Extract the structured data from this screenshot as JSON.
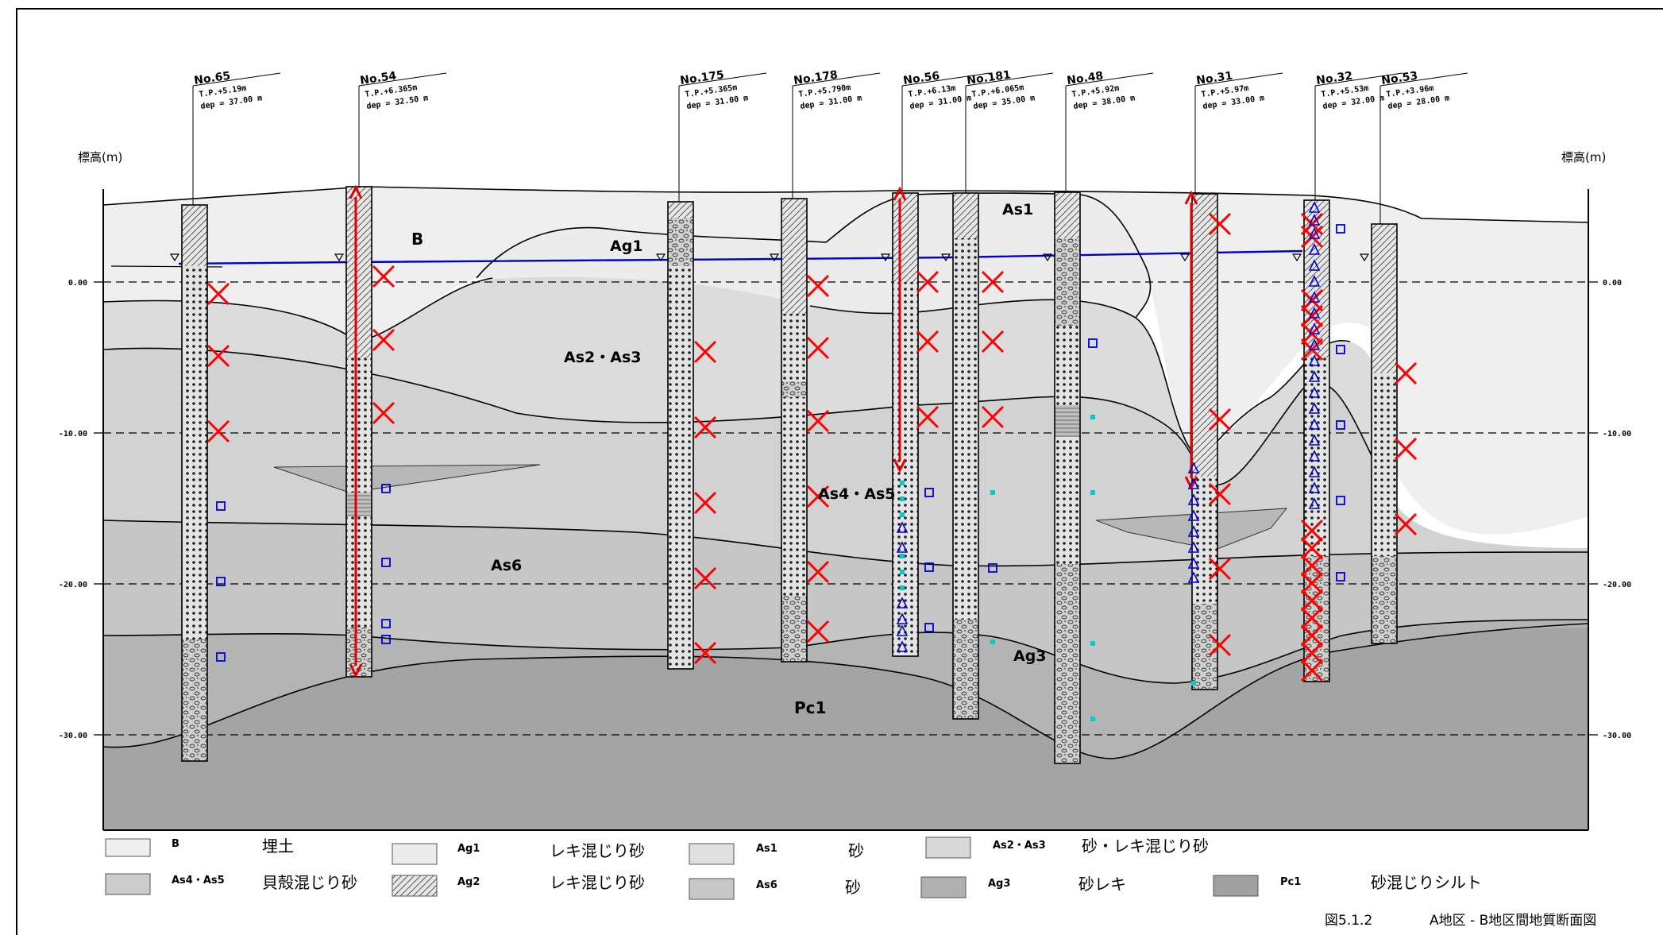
{
  "axis": {
    "left_label": "標高(m)",
    "right_label": "標高(m)",
    "ticks": [
      "0.00",
      "-10.00",
      "-20.00",
      "-30.00"
    ]
  },
  "boreholes": [
    {
      "id": "No.65",
      "tp": "T.P.+5.19m",
      "dep": "dep = 37.00 m"
    },
    {
      "id": "No.54",
      "tp": "T.P.+6.365m",
      "dep": "dep = 32.50 m"
    },
    {
      "id": "No.175",
      "tp": "T.P.+5.365m",
      "dep": "dep = 31.00 m"
    },
    {
      "id": "No.178",
      "tp": "T.P.+5.790m",
      "dep": "dep = 31.00 m"
    },
    {
      "id": "No.56",
      "tp": "T.P.+6.13m",
      "dep": "dep = 31.00 m"
    },
    {
      "id": "No.181",
      "tp": "T.P.+6.065m",
      "dep": "dep = 35.00 m"
    },
    {
      "id": "No.48",
      "tp": "T.P.+5.92m",
      "dep": "dep = 38.00 m"
    },
    {
      "id": "No.31",
      "tp": "T.P.+5.97m",
      "dep": "dep = 33.00 m"
    },
    {
      "id": "No.32",
      "tp": "T.P.+5.53m",
      "dep": "dep = 32.00 m"
    },
    {
      "id": "No.53",
      "tp": "T.P.+3.96m",
      "dep": "dep = 28.00 m"
    }
  ],
  "layer_labels": {
    "b": "B",
    "ag1": "Ag1",
    "as1": "As1",
    "as23": "As2・As3",
    "as45": "As4・As5",
    "as6": "As6",
    "ag3": "Ag3",
    "pc1": "Pc1"
  },
  "legend": [
    {
      "code": "B",
      "desc": "埋土",
      "color": "#f0f0f0"
    },
    {
      "code": "Ag1",
      "desc": "レキ混じり砂",
      "color": "#ececec"
    },
    {
      "code": "As1",
      "desc": "砂",
      "color": "#e0e0e0"
    },
    {
      "code": "As2・As3",
      "desc": "砂・レキ混じり砂",
      "color": "#d8d8d8"
    },
    {
      "code": "As4・As5",
      "desc": "貝殻混じり砂",
      "color": "#cccccc"
    },
    {
      "code": "Ag2",
      "desc": "レキ混じり砂",
      "color": "#c4c4c4"
    },
    {
      "code": "As6",
      "desc": "砂",
      "color": "#c8c8c8"
    },
    {
      "code": "Ag3",
      "desc": "砂レキ",
      "color": "#b0b0b0"
    },
    {
      "code": "Pc1",
      "desc": "砂混じりシルト",
      "color": "#a0a0a0"
    }
  ],
  "caption": {
    "fig": "図5.1.2",
    "title": "A地区 - B地区間地質断面図"
  },
  "colors": {
    "water_table": "#0000cc",
    "sample_marker": "#ff0000",
    "square_marker": "#0000cc",
    "triangle_marker": "#0000cc",
    "dot_marker": "#00cccc"
  }
}
